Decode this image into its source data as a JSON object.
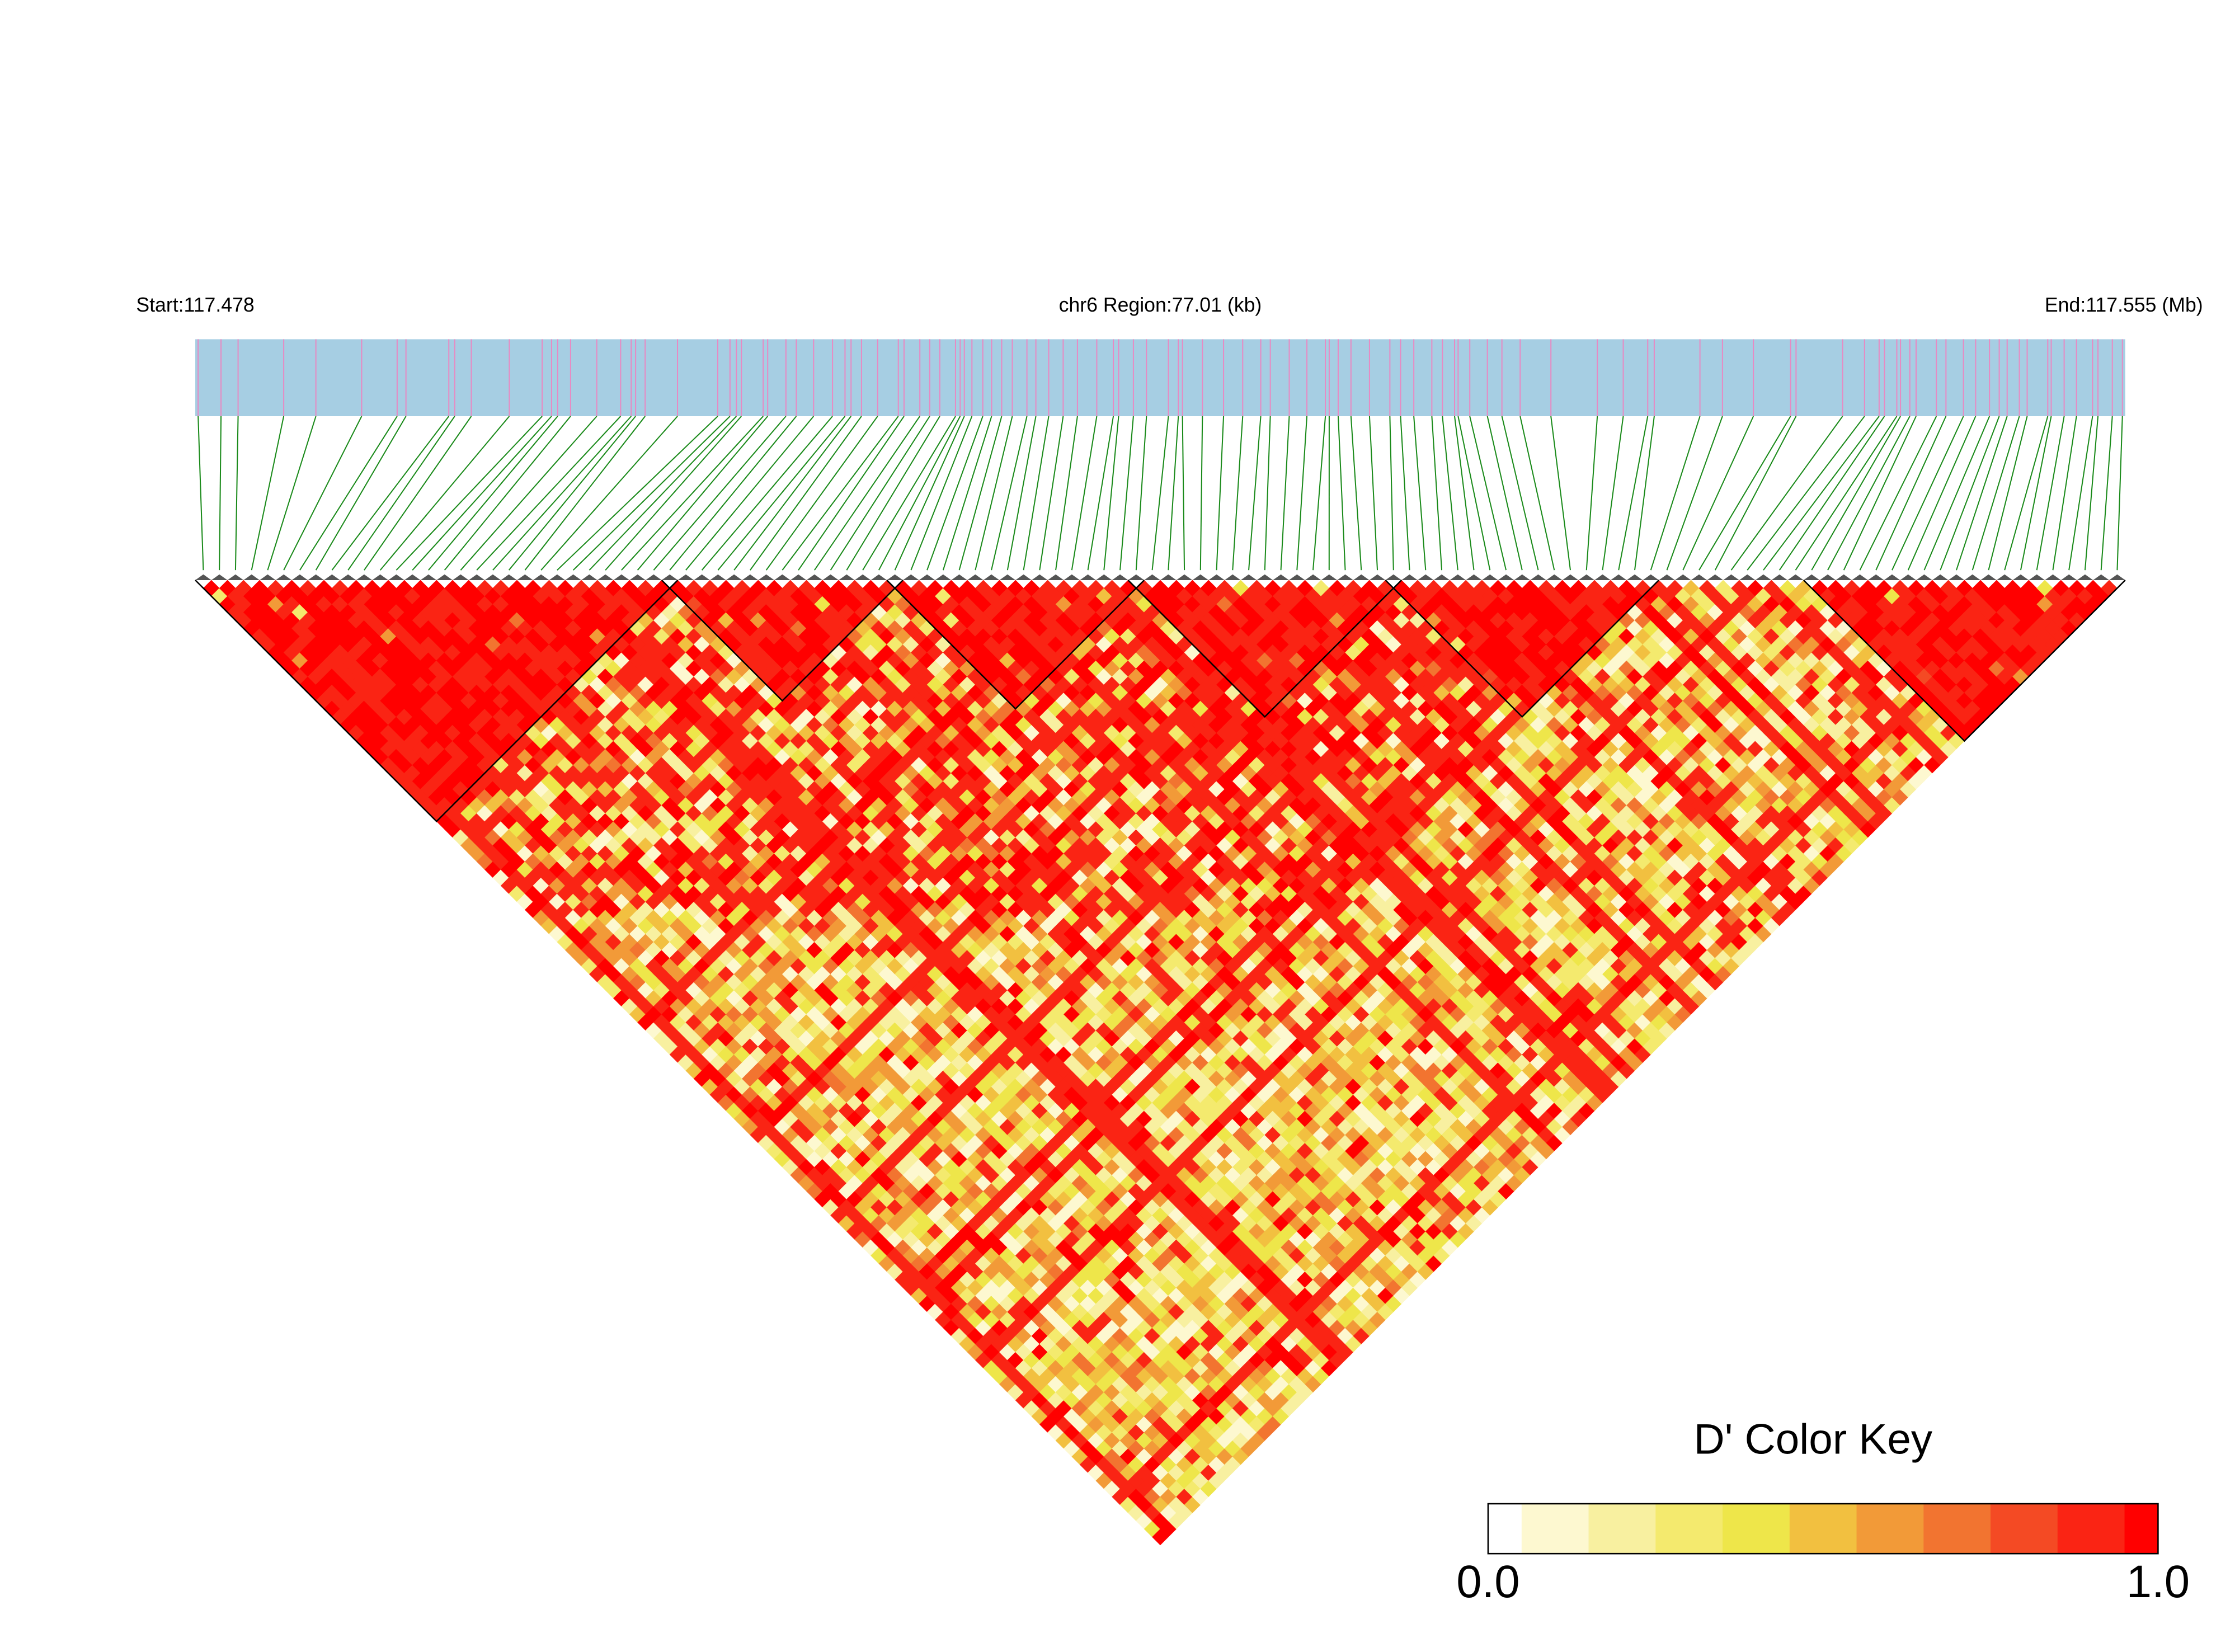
{
  "chart_data": {
    "type": "ld-heatmap",
    "start_label": "Start:117.478",
    "region_label": "chr6 Region:77.01 (kb)",
    "end_label": "End:117.555 (Mb)",
    "color_key": {
      "title": "D' Color Key",
      "ticks": [
        {
          "value": 0,
          "label": "0.0"
        },
        {
          "value": 1,
          "label": "1.0"
        }
      ],
      "colors": [
        "#ffffff",
        "#fdf8d0",
        "#f8f0a0",
        "#f4ea6e",
        "#eee64a",
        "#f2c040",
        "#f29a38",
        "#f27430",
        "#f44a24",
        "#fa2414",
        "#ff0000"
      ]
    }
  }
}
